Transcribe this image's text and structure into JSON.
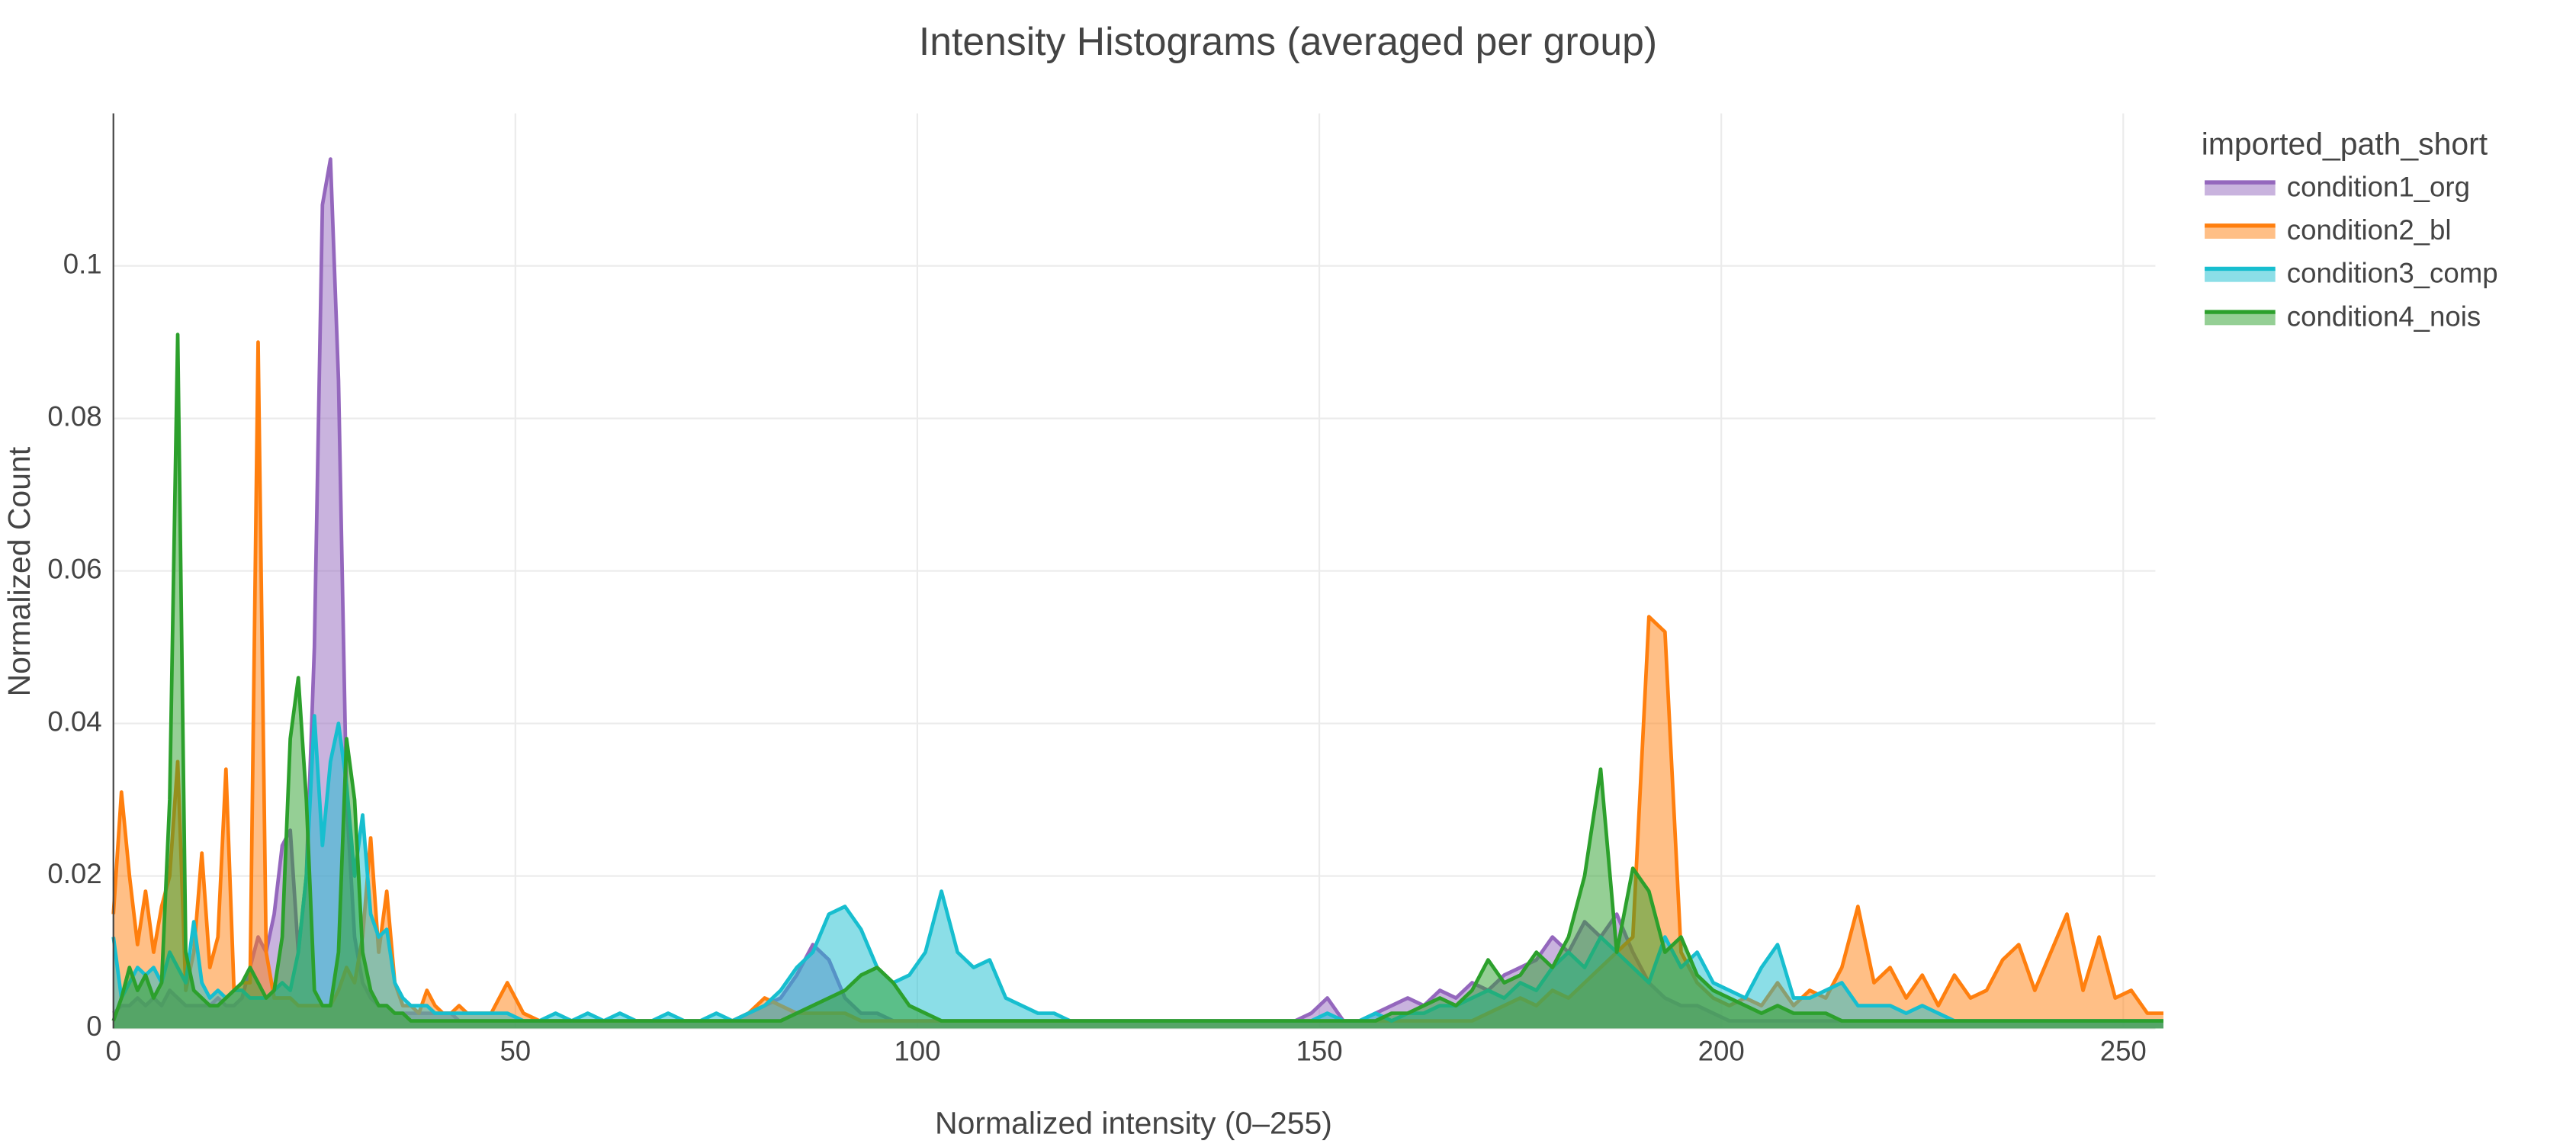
{
  "chart_data": {
    "type": "area",
    "title": "Intensity Histograms (averaged per group)",
    "x_label": "Normalized intensity (0–255)",
    "y_label": "Normalized Count",
    "legend_title": "imported_path_short",
    "legend_position": "right",
    "grid": true,
    "xlim": [
      0,
      254
    ],
    "ylim": [
      0,
      0.12
    ],
    "xticks": [
      0,
      50,
      100,
      150,
      200,
      250
    ],
    "yticks": [
      0,
      0.02,
      0.04,
      0.06,
      0.08,
      0.1
    ],
    "x": [
      0,
      1,
      2,
      3,
      4,
      5,
      6,
      7,
      8,
      9,
      10,
      11,
      12,
      13,
      14,
      15,
      16,
      17,
      18,
      19,
      20,
      21,
      22,
      23,
      24,
      25,
      26,
      27,
      28,
      29,
      30,
      31,
      32,
      33,
      34,
      35,
      36,
      37,
      38,
      39,
      40,
      41,
      42,
      43,
      44,
      45,
      47,
      49,
      51,
      53,
      55,
      57,
      59,
      61,
      63,
      65,
      67,
      69,
      71,
      73,
      75,
      77,
      79,
      81,
      83,
      85,
      87,
      89,
      91,
      93,
      95,
      97,
      99,
      101,
      103,
      105,
      107,
      109,
      111,
      113,
      115,
      117,
      119,
      121,
      123,
      125,
      127,
      129,
      131,
      133,
      135,
      137,
      139,
      141,
      143,
      145,
      147,
      149,
      151,
      153,
      155,
      157,
      159,
      161,
      163,
      165,
      167,
      169,
      171,
      173,
      175,
      177,
      179,
      181,
      183,
      185,
      187,
      189,
      191,
      193,
      195,
      197,
      199,
      201,
      203,
      205,
      207,
      209,
      211,
      213,
      215,
      217,
      219,
      221,
      223,
      225,
      227,
      229,
      231,
      233,
      235,
      237,
      239,
      241,
      243,
      245,
      247,
      249,
      251,
      253,
      255
    ],
    "series": [
      {
        "name": "condition1_org",
        "color": "#9467bd",
        "values": [
          0.002,
          0.003,
          0.003,
          0.004,
          0.003,
          0.004,
          0.003,
          0.005,
          0.004,
          0.003,
          0.003,
          0.003,
          0.003,
          0.004,
          0.003,
          0.003,
          0.004,
          0.008,
          0.012,
          0.01,
          0.015,
          0.024,
          0.026,
          0.01,
          0.02,
          0.05,
          0.108,
          0.114,
          0.085,
          0.03,
          0.012,
          0.006,
          0.004,
          0.003,
          0.003,
          0.002,
          0.002,
          0.002,
          0.002,
          0.002,
          0.002,
          0.002,
          0.002,
          0.001,
          0.001,
          0.001,
          0.001,
          0.001,
          0.001,
          0.001,
          0.001,
          0.001,
          0.001,
          0.001,
          0.001,
          0.001,
          0.001,
          0.001,
          0.001,
          0.001,
          0.001,
          0.001,
          0.002,
          0.003,
          0.004,
          0.007,
          0.011,
          0.009,
          0.004,
          0.002,
          0.002,
          0.001,
          0.001,
          0.001,
          0.001,
          0.001,
          0.001,
          0.001,
          0.001,
          0.001,
          0.001,
          0.001,
          0.001,
          0.001,
          0.001,
          0.001,
          0.001,
          0.001,
          0.001,
          0.001,
          0.001,
          0.001,
          0.001,
          0.001,
          0.001,
          0.001,
          0.001,
          0.002,
          0.004,
          0.001,
          0.001,
          0.002,
          0.003,
          0.004,
          0.003,
          0.005,
          0.004,
          0.006,
          0.005,
          0.007,
          0.008,
          0.009,
          0.012,
          0.01,
          0.014,
          0.012,
          0.015,
          0.01,
          0.006,
          0.004,
          0.003,
          0.003,
          0.002,
          0.001,
          0.001,
          0.001,
          0.001,
          0.001,
          0.001,
          0.001,
          0.001,
          0.001,
          0.001,
          0.001,
          0.001,
          0.001,
          0.001,
          0.001,
          0.001,
          0.001,
          0.001,
          0.001,
          0.001,
          0.001,
          0.001,
          0.001,
          0.001,
          0.001,
          0.001,
          0.001,
          0.001
        ]
      },
      {
        "name": "condition2_bl",
        "color": "#ff7f0e",
        "values": [
          0.015,
          0.031,
          0.02,
          0.011,
          0.018,
          0.01,
          0.016,
          0.02,
          0.035,
          0.005,
          0.01,
          0.023,
          0.008,
          0.012,
          0.034,
          0.005,
          0.006,
          0.006,
          0.09,
          0.01,
          0.004,
          0.004,
          0.004,
          0.003,
          0.003,
          0.003,
          0.003,
          0.003,
          0.005,
          0.008,
          0.006,
          0.012,
          0.025,
          0.01,
          0.018,
          0.006,
          0.003,
          0.003,
          0.002,
          0.005,
          0.003,
          0.002,
          0.002,
          0.003,
          0.002,
          0.002,
          0.002,
          0.006,
          0.002,
          0.001,
          0.001,
          0.001,
          0.001,
          0.001,
          0.001,
          0.001,
          0.001,
          0.001,
          0.001,
          0.001,
          0.001,
          0.001,
          0.002,
          0.004,
          0.003,
          0.002,
          0.002,
          0.002,
          0.002,
          0.001,
          0.001,
          0.001,
          0.001,
          0.001,
          0.001,
          0.001,
          0.001,
          0.001,
          0.001,
          0.001,
          0.001,
          0.001,
          0.001,
          0.001,
          0.001,
          0.001,
          0.001,
          0.001,
          0.001,
          0.001,
          0.001,
          0.001,
          0.001,
          0.001,
          0.001,
          0.001,
          0.001,
          0.001,
          0.001,
          0.001,
          0.001,
          0.001,
          0.001,
          0.001,
          0.001,
          0.001,
          0.001,
          0.001,
          0.002,
          0.003,
          0.004,
          0.003,
          0.005,
          0.004,
          0.006,
          0.008,
          0.01,
          0.012,
          0.054,
          0.052,
          0.01,
          0.006,
          0.004,
          0.003,
          0.004,
          0.003,
          0.006,
          0.003,
          0.005,
          0.004,
          0.008,
          0.016,
          0.006,
          0.008,
          0.004,
          0.007,
          0.003,
          0.007,
          0.004,
          0.005,
          0.009,
          0.011,
          0.005,
          0.01,
          0.015,
          0.005,
          0.012,
          0.004,
          0.005,
          0.002,
          0.002
        ]
      },
      {
        "name": "condition3_comp",
        "color": "#17becf",
        "values": [
          0.012,
          0.004,
          0.006,
          0.008,
          0.007,
          0.008,
          0.006,
          0.01,
          0.008,
          0.006,
          0.014,
          0.006,
          0.004,
          0.005,
          0.004,
          0.005,
          0.005,
          0.004,
          0.004,
          0.004,
          0.005,
          0.006,
          0.005,
          0.01,
          0.02,
          0.041,
          0.024,
          0.035,
          0.04,
          0.032,
          0.02,
          0.028,
          0.015,
          0.012,
          0.013,
          0.006,
          0.004,
          0.003,
          0.003,
          0.003,
          0.002,
          0.002,
          0.002,
          0.002,
          0.002,
          0.002,
          0.002,
          0.002,
          0.001,
          0.001,
          0.002,
          0.001,
          0.002,
          0.001,
          0.002,
          0.001,
          0.001,
          0.002,
          0.001,
          0.001,
          0.002,
          0.001,
          0.002,
          0.003,
          0.005,
          0.008,
          0.01,
          0.015,
          0.016,
          0.013,
          0.008,
          0.006,
          0.007,
          0.01,
          0.018,
          0.01,
          0.008,
          0.009,
          0.004,
          0.003,
          0.002,
          0.002,
          0.001,
          0.001,
          0.001,
          0.001,
          0.001,
          0.001,
          0.001,
          0.001,
          0.001,
          0.001,
          0.001,
          0.001,
          0.001,
          0.001,
          0.001,
          0.001,
          0.002,
          0.001,
          0.001,
          0.002,
          0.001,
          0.002,
          0.002,
          0.003,
          0.003,
          0.004,
          0.005,
          0.004,
          0.006,
          0.005,
          0.008,
          0.01,
          0.008,
          0.012,
          0.01,
          0.008,
          0.006,
          0.012,
          0.008,
          0.01,
          0.006,
          0.005,
          0.004,
          0.008,
          0.011,
          0.004,
          0.004,
          0.005,
          0.006,
          0.003,
          0.003,
          0.003,
          0.002,
          0.003,
          0.002,
          0.001,
          0.001,
          0.001,
          0.001,
          0.001,
          0.001,
          0.001,
          0.001,
          0.001,
          0.001,
          0.001,
          0.001,
          0.001,
          0.001
        ]
      },
      {
        "name": "condition4_nois",
        "color": "#2ca02c",
        "values": [
          0.001,
          0.004,
          0.008,
          0.005,
          0.007,
          0.004,
          0.006,
          0.03,
          0.091,
          0.01,
          0.005,
          0.004,
          0.003,
          0.003,
          0.004,
          0.005,
          0.006,
          0.008,
          0.006,
          0.004,
          0.005,
          0.012,
          0.038,
          0.046,
          0.03,
          0.005,
          0.003,
          0.003,
          0.01,
          0.038,
          0.03,
          0.01,
          0.005,
          0.003,
          0.003,
          0.002,
          0.002,
          0.001,
          0.001,
          0.001,
          0.001,
          0.001,
          0.001,
          0.001,
          0.001,
          0.001,
          0.001,
          0.001,
          0.001,
          0.001,
          0.001,
          0.001,
          0.001,
          0.001,
          0.001,
          0.001,
          0.001,
          0.001,
          0.001,
          0.001,
          0.001,
          0.001,
          0.001,
          0.001,
          0.001,
          0.002,
          0.003,
          0.004,
          0.005,
          0.007,
          0.008,
          0.006,
          0.003,
          0.002,
          0.001,
          0.001,
          0.001,
          0.001,
          0.001,
          0.001,
          0.001,
          0.001,
          0.001,
          0.001,
          0.001,
          0.001,
          0.001,
          0.001,
          0.001,
          0.001,
          0.001,
          0.001,
          0.001,
          0.001,
          0.001,
          0.001,
          0.001,
          0.001,
          0.001,
          0.001,
          0.001,
          0.001,
          0.002,
          0.002,
          0.003,
          0.004,
          0.003,
          0.005,
          0.009,
          0.006,
          0.007,
          0.01,
          0.008,
          0.012,
          0.02,
          0.034,
          0.01,
          0.021,
          0.018,
          0.01,
          0.012,
          0.007,
          0.005,
          0.004,
          0.003,
          0.002,
          0.003,
          0.002,
          0.002,
          0.002,
          0.001,
          0.001,
          0.001,
          0.001,
          0.001,
          0.001,
          0.001,
          0.001,
          0.001,
          0.001,
          0.001,
          0.001,
          0.001,
          0.001,
          0.001,
          0.001,
          0.001,
          0.001,
          0.001,
          0.001,
          0.001
        ]
      }
    ]
  }
}
